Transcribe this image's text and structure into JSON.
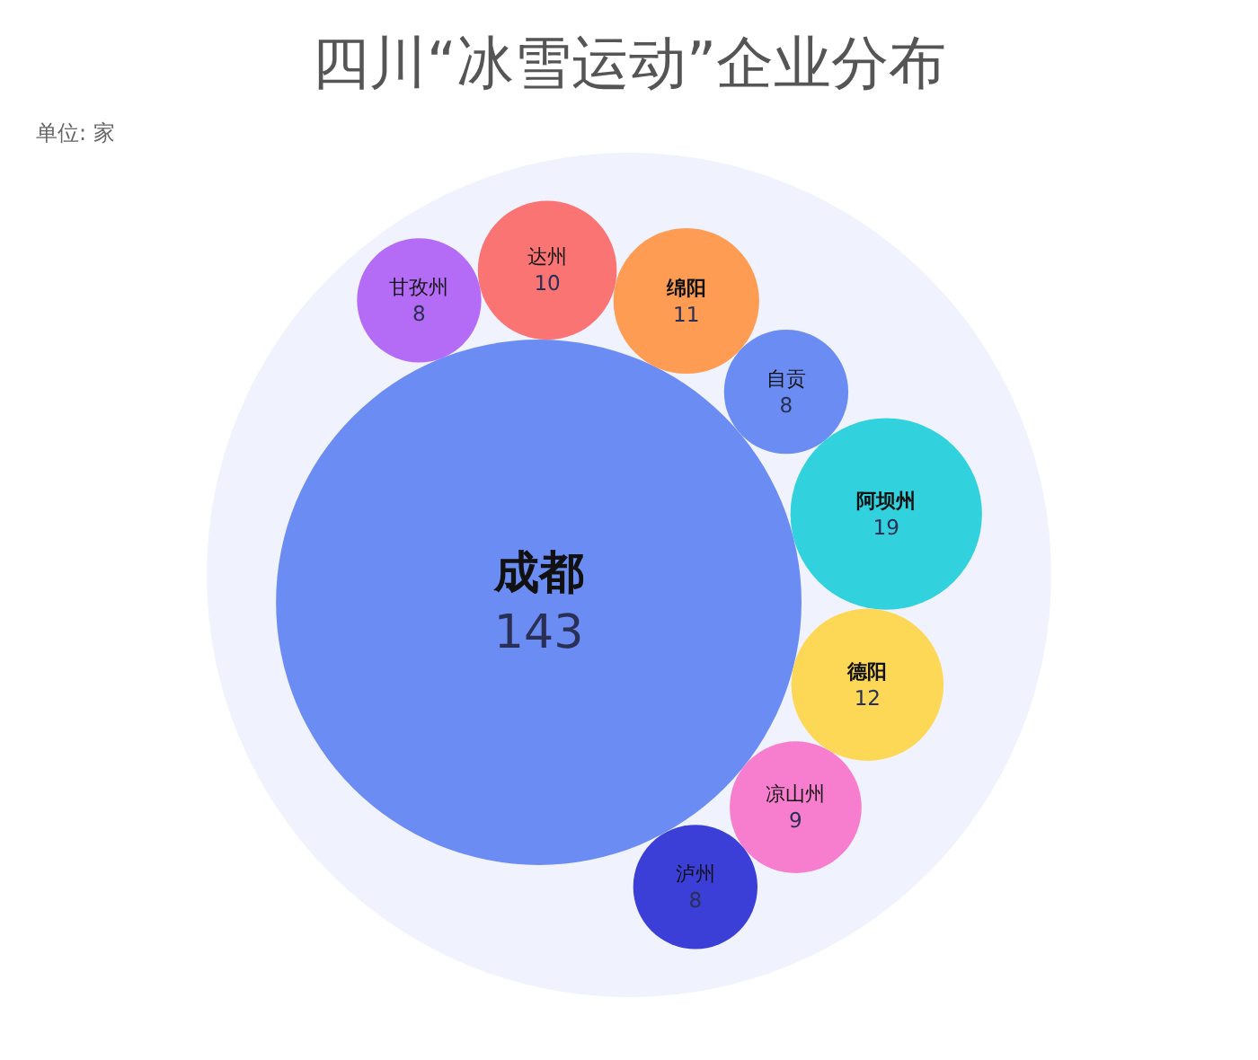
{
  "chart_data": {
    "type": "other",
    "title": "四川“冰雪运动”企业分布",
    "annotations": [
      "单位: 家"
    ],
    "categories": [
      "成都",
      "甘孜州",
      "达州",
      "绵阳",
      "自贡",
      "阿坝州",
      "德阳",
      "凉山州",
      "泸州"
    ],
    "values": [
      143,
      8,
      10,
      11,
      8,
      19,
      12,
      9,
      8
    ],
    "colors": [
      "#6b8cf2",
      "#b46cf6",
      "#fb7474",
      "#fd9c52",
      "#6b8cf2",
      "#31d1dd",
      "#fdd856",
      "#f77dce",
      "#3b3fd8"
    ],
    "data_labels": true
  }
}
